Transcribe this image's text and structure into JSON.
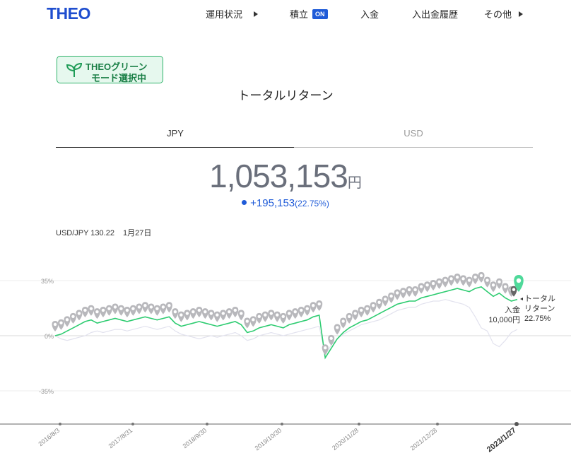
{
  "header": {
    "logo": "THEO",
    "nav": [
      {
        "label": "運用状況",
        "arrow": true
      },
      {
        "label": "積立",
        "badge": "ON"
      },
      {
        "label": "入金"
      },
      {
        "label": "入出金履歴"
      },
      {
        "label": "その他",
        "arrow": true
      }
    ]
  },
  "green_mode": {
    "line1": "THEOグリーン",
    "line2": "モード選択中",
    "icon": "leaf-icon"
  },
  "title": "トータルリターン",
  "tabs": [
    {
      "label": "JPY",
      "active": true
    },
    {
      "label": "USD",
      "active": false
    }
  ],
  "total": {
    "amount": "1,053,153",
    "unit": "円"
  },
  "gain": {
    "amount": "+195,153",
    "percent": "(22.75%)"
  },
  "fx": {
    "rate": "USD/JPY 130.22",
    "date": "1月27日"
  },
  "side_labels": {
    "total_return": "トータル\nリターン\n22.75%",
    "deposit": "入金\n10,000円"
  },
  "colors": {
    "accent": "#1f5bd8",
    "green": "#2ecc71",
    "marker": "#b8b8bc"
  },
  "chart_data": {
    "type": "line",
    "y_ticks": [
      "35%",
      "0%",
      "-35%"
    ],
    "ylim": [
      -55,
      45
    ],
    "x_ticks": [
      "2016/8/3",
      "2017/8/31",
      "2018/9/30",
      "2019/10/30",
      "2020/11/28",
      "2021/12/28",
      "2023/1/27"
    ],
    "series": [
      {
        "color": "#2ecc71",
        "values": [
          0,
          1,
          3,
          5,
          7,
          9,
          10,
          8,
          9,
          10,
          11,
          10,
          9,
          10,
          11,
          12,
          11,
          10,
          11,
          12,
          8,
          6,
          7,
          8,
          9,
          8,
          7,
          6,
          7,
          8,
          9,
          7,
          2,
          3,
          5,
          6,
          7,
          6,
          5,
          7,
          8,
          9,
          10,
          12,
          13,
          -14,
          -8,
          -2,
          2,
          5,
          7,
          9,
          10,
          12,
          14,
          16,
          18,
          20,
          21,
          22,
          22,
          24,
          25,
          26,
          27,
          28,
          29,
          30,
          29,
          28,
          30,
          31,
          28,
          25,
          27,
          24,
          22,
          23
        ]
      },
      {
        "color": "#e2e2ee",
        "values": [
          0,
          -2,
          -3,
          -2,
          -1,
          0,
          2,
          3,
          2,
          3,
          4,
          4,
          3,
          4,
          5,
          6,
          5,
          4,
          5,
          6,
          3,
          1,
          0,
          -1,
          -2,
          -1,
          0,
          -1,
          0,
          1,
          2,
          0,
          -3,
          -2,
          0,
          1,
          2,
          1,
          0,
          1,
          2,
          3,
          4,
          5,
          6,
          -12,
          -6,
          -2,
          1,
          3,
          5,
          7,
          8,
          9,
          10,
          12,
          14,
          16,
          17,
          18,
          18,
          20,
          21,
          22,
          22,
          23,
          22,
          21,
          20,
          18,
          12,
          5,
          3,
          -5,
          -7,
          -3,
          2,
          4
        ]
      }
    ]
  }
}
